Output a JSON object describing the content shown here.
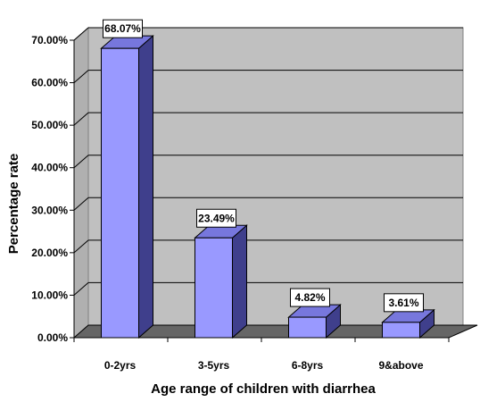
{
  "chart_data": {
    "type": "bar",
    "categories": [
      "0-2yrs",
      "3-5yrs",
      "6-8yrs",
      "9&above"
    ],
    "values": [
      68.07,
      23.49,
      4.82,
      3.61
    ],
    "data_labels": [
      "68.07%",
      "23.49%",
      "4.82%",
      "3.61%"
    ],
    "title": "",
    "xlabel": "Age range of children with diarrhea",
    "ylabel": "Percentage rate",
    "ylim": [
      0,
      70
    ],
    "yticks": [
      "0.00%",
      "10.00%",
      "20.00%",
      "30.00%",
      "40.00%",
      "50.00%",
      "60.00%",
      "70.00%"
    ],
    "grid": true,
    "style": "3d",
    "colors": {
      "bar_front": "#9999ff",
      "bar_side": "#3f3f8c",
      "bar_top": "#7777dd",
      "back_wall": "#c0c0c0",
      "floor": "#666666",
      "label_box": "#ffffff"
    }
  }
}
